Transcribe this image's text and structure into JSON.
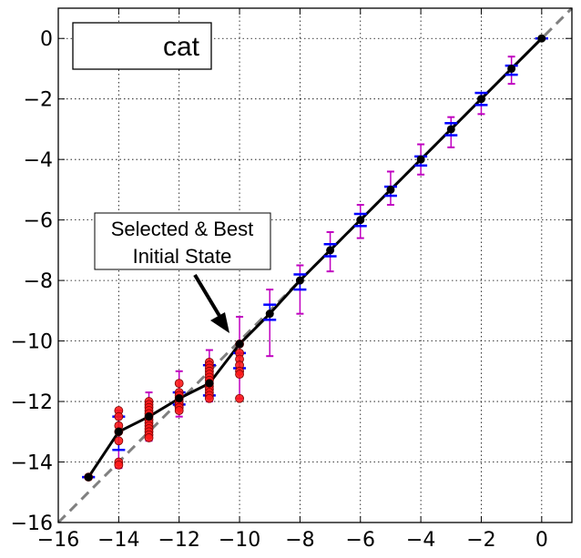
{
  "chart_data": {
    "type": "line",
    "title": "",
    "xlabel": "",
    "ylabel": "",
    "xlim": [
      -16,
      1
    ],
    "ylim": [
      -16,
      1
    ],
    "x_ticks": [
      -16,
      -14,
      -12,
      -10,
      -8,
      -6,
      -4,
      -2,
      0
    ],
    "y_ticks": [
      -16,
      -14,
      -12,
      -10,
      -8,
      -6,
      -4,
      -2,
      0
    ],
    "x_tick_labels": [
      "−16",
      "−14",
      "−12",
      "−10",
      "−8",
      "−6",
      "−4",
      "−2",
      "0"
    ],
    "y_tick_labels": [
      "−16",
      "−14",
      "−12",
      "−10",
      "−8",
      "−6",
      "−4",
      "−2",
      "0"
    ],
    "grid": true,
    "legend": {
      "label": "cat",
      "placement": "top-left"
    },
    "annotation": {
      "line1": "Selected & Best",
      "line2": "Initial State",
      "target": [
        -10,
        -10
      ]
    },
    "reference_line": {
      "style": "dashed",
      "color": "#808080",
      "x": [
        -16,
        1
      ],
      "y": [
        -16,
        1
      ]
    },
    "series": [
      {
        "name": "cat",
        "color": "#000000",
        "x": [
          -15,
          -14,
          -13,
          -12,
          -11,
          -10,
          -9,
          -8,
          -7,
          -6,
          -5,
          -4,
          -3,
          -2,
          -1,
          0
        ],
        "y": [
          -14.5,
          -13.0,
          -12.5,
          -11.9,
          -11.4,
          -10.1,
          -9.1,
          -8.0,
          -7.0,
          -6.0,
          -5.0,
          -4.0,
          -3.0,
          -2.0,
          -1.0,
          0.0
        ]
      }
    ],
    "blue_error_bars": [
      {
        "x": -15,
        "low": -14.5,
        "high": -14.5
      },
      {
        "x": -14,
        "low": -13.6,
        "high": -12.5
      },
      {
        "x": -12,
        "low": -12.1,
        "high": -11.7
      },
      {
        "x": -11,
        "low": -11.8,
        "high": -10.8
      },
      {
        "x": -10,
        "low": -10.9,
        "high": -10.4
      },
      {
        "x": -9,
        "low": -9.3,
        "high": -8.8
      },
      {
        "x": -8,
        "low": -8.3,
        "high": -7.8
      },
      {
        "x": -7,
        "low": -7.2,
        "high": -6.8
      },
      {
        "x": -6,
        "low": -6.2,
        "high": -5.8
      },
      {
        "x": -5,
        "low": -5.2,
        "high": -4.9
      },
      {
        "x": -4,
        "low": -4.2,
        "high": -3.9
      },
      {
        "x": -3,
        "low": -3.2,
        "high": -2.8
      },
      {
        "x": -2,
        "low": -2.2,
        "high": -1.8
      },
      {
        "x": -1,
        "low": -1.2,
        "high": -0.9
      },
      {
        "x": 0,
        "low": 0.0,
        "high": 0.0
      }
    ],
    "magenta_error_bars": [
      {
        "x": -14,
        "low": -14.2,
        "high": -12.3
      },
      {
        "x": -13,
        "low": -13.3,
        "high": -11.7
      },
      {
        "x": -12,
        "low": -12.5,
        "high": -11.0
      },
      {
        "x": -11,
        "low": -12.0,
        "high": -10.3
      },
      {
        "x": -10,
        "low": -11.9,
        "high": -9.2
      },
      {
        "x": -9,
        "low": -10.5,
        "high": -8.3
      },
      {
        "x": -8,
        "low": -9.1,
        "high": -7.5
      },
      {
        "x": -7,
        "low": -7.7,
        "high": -6.4
      },
      {
        "x": -6,
        "low": -6.6,
        "high": -5.5
      },
      {
        "x": -5,
        "low": -5.5,
        "high": -4.4
      },
      {
        "x": -4,
        "low": -4.5,
        "high": -3.5
      },
      {
        "x": -3,
        "low": -3.6,
        "high": -2.6
      },
      {
        "x": -2,
        "low": -2.5,
        "high": -1.8
      },
      {
        "x": -1,
        "low": -1.5,
        "high": -0.6
      }
    ],
    "red_points": [
      {
        "x": -15,
        "y": -14.5
      },
      {
        "x": -14,
        "y": -12.3
      },
      {
        "x": -14,
        "y": -12.5
      },
      {
        "x": -14,
        "y": -12.8
      },
      {
        "x": -14,
        "y": -13.0
      },
      {
        "x": -14,
        "y": -13.3
      },
      {
        "x": -14,
        "y": -14.0
      },
      {
        "x": -14,
        "y": -14.1
      },
      {
        "x": -13,
        "y": -12.0
      },
      {
        "x": -13,
        "y": -12.1
      },
      {
        "x": -13,
        "y": -12.2
      },
      {
        "x": -13,
        "y": -12.3
      },
      {
        "x": -13,
        "y": -12.4
      },
      {
        "x": -13,
        "y": -12.5
      },
      {
        "x": -13,
        "y": -12.6
      },
      {
        "x": -13,
        "y": -12.7
      },
      {
        "x": -13,
        "y": -12.8
      },
      {
        "x": -13,
        "y": -12.9
      },
      {
        "x": -13,
        "y": -13.0
      },
      {
        "x": -13,
        "y": -13.1
      },
      {
        "x": -13,
        "y": -13.2
      },
      {
        "x": -12,
        "y": -11.4
      },
      {
        "x": -12,
        "y": -11.7
      },
      {
        "x": -12,
        "y": -11.8
      },
      {
        "x": -12,
        "y": -11.9
      },
      {
        "x": -12,
        "y": -12.0
      },
      {
        "x": -12,
        "y": -12.1
      },
      {
        "x": -12,
        "y": -12.2
      },
      {
        "x": -12,
        "y": -12.3
      },
      {
        "x": -11,
        "y": -10.7
      },
      {
        "x": -11,
        "y": -10.8
      },
      {
        "x": -11,
        "y": -10.9
      },
      {
        "x": -11,
        "y": -11.0
      },
      {
        "x": -11,
        "y": -11.1
      },
      {
        "x": -11,
        "y": -11.2
      },
      {
        "x": -11,
        "y": -11.3
      },
      {
        "x": -11,
        "y": -11.4
      },
      {
        "x": -11,
        "y": -11.5
      },
      {
        "x": -11,
        "y": -11.6
      },
      {
        "x": -11,
        "y": -11.7
      },
      {
        "x": -11,
        "y": -11.8
      },
      {
        "x": -11,
        "y": -11.9
      },
      {
        "x": -10,
        "y": -10.1
      },
      {
        "x": -10,
        "y": -10.4
      },
      {
        "x": -10,
        "y": -10.6
      },
      {
        "x": -10,
        "y": -10.8
      },
      {
        "x": -10,
        "y": -11.0
      },
      {
        "x": -10,
        "y": -11.1
      },
      {
        "x": -10,
        "y": -11.9
      }
    ]
  }
}
